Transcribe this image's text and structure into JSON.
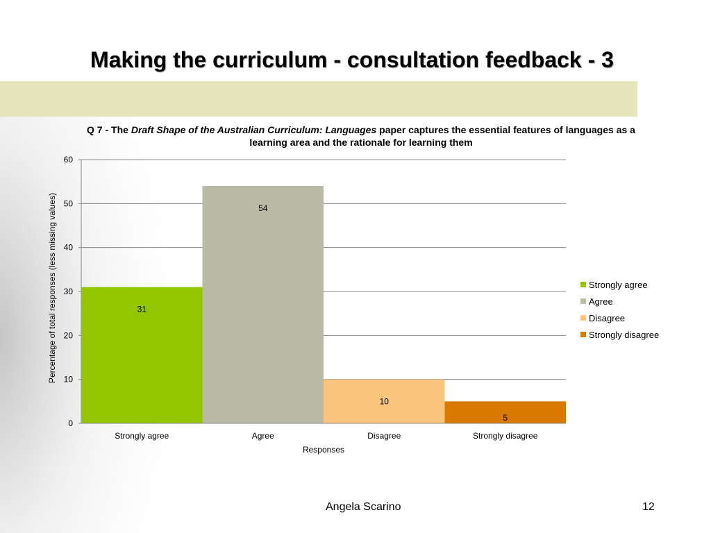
{
  "slide": {
    "title": "Making the curriculum - consultation feedback - 3",
    "author": "Angela Scarino",
    "page_number": "12"
  },
  "colors": {
    "band": "#e6e4bb",
    "strongly_agree": "#94c600",
    "agree": "#babba4",
    "disagree": "#fbc57e",
    "strongly_disagree": "#d97a00",
    "gridline": "#888888"
  },
  "chart_data": {
    "type": "bar",
    "title_prefix": "Q 7 - The ",
    "title_italic": "Draft Shape of the Australian Curriculum: Languages",
    "title_suffix": " paper captures the essential features of languages as a learning area and the rationale for learning them",
    "xlabel": "Responses",
    "ylabel": "Percentage of total responses (less missing values)",
    "ylim": [
      0,
      60
    ],
    "yticks": [
      "0",
      "10",
      "20",
      "30",
      "40",
      "50",
      "60"
    ],
    "grid": true,
    "legend_position": "right",
    "categories": [
      "Strongly agree",
      "Agree",
      "Disagree",
      "Strongly disagree"
    ],
    "values": [
      31,
      54,
      10,
      5
    ],
    "data_labels": [
      "31",
      "54",
      "10",
      "5"
    ],
    "legend": [
      "Strongly agree",
      "Agree",
      "Disagree",
      "Strongly disagree"
    ]
  }
}
